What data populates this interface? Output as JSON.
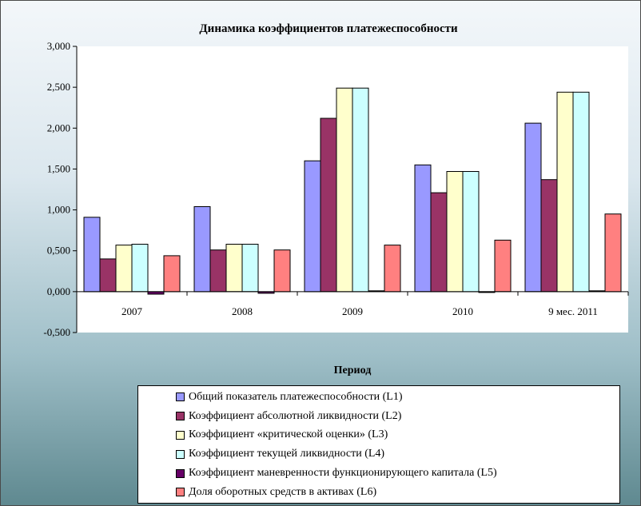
{
  "chart_data": {
    "type": "bar",
    "title": "Динамика коэффициентов  платежеспособности",
    "xlabel": "Период",
    "ylabel": "",
    "ylim": [
      -0.5,
      3.0
    ],
    "y_ticks": [
      "3,000",
      "2,500",
      "2,000",
      "1,500",
      "1,000",
      "0,500",
      "0,000",
      "-0,500"
    ],
    "y_tick_values": [
      3.0,
      2.5,
      2.0,
      1.5,
      1.0,
      0.5,
      0.0,
      -0.5
    ],
    "grid": false,
    "legend_position": "bottom",
    "categories": [
      "2007",
      "2008",
      "2009",
      "2010",
      "9 мес. 2011"
    ],
    "series": [
      {
        "name": "Общий показатель платежеспособности (L1)",
        "color": "#9999ff",
        "values": [
          0.91,
          1.04,
          1.6,
          1.55,
          2.06
        ]
      },
      {
        "name": "Коэффициент абсолютной ликвидности (L2)",
        "color": "#993366",
        "values": [
          0.4,
          0.51,
          2.12,
          1.21,
          1.37
        ]
      },
      {
        "name": "Коэффициент «критической оценки» (L3)",
        "color": "#ffffcc",
        "values": [
          0.57,
          0.58,
          2.49,
          1.47,
          2.44
        ]
      },
      {
        "name": "Коэффициент текущей ликвидности (L4)",
        "color": "#ccffff",
        "values": [
          0.58,
          0.58,
          2.49,
          1.47,
          2.44
        ]
      },
      {
        "name": "Коэффициент маневренности функционирующего капитала (L5)",
        "color": "#660066",
        "values": [
          -0.03,
          -0.02,
          0.01,
          -0.01,
          0.01
        ]
      },
      {
        "name": "Доля оборотных средств в активах (L6)",
        "color": "#ff8080",
        "values": [
          0.44,
          0.51,
          0.57,
          0.63,
          0.95
        ]
      }
    ]
  }
}
